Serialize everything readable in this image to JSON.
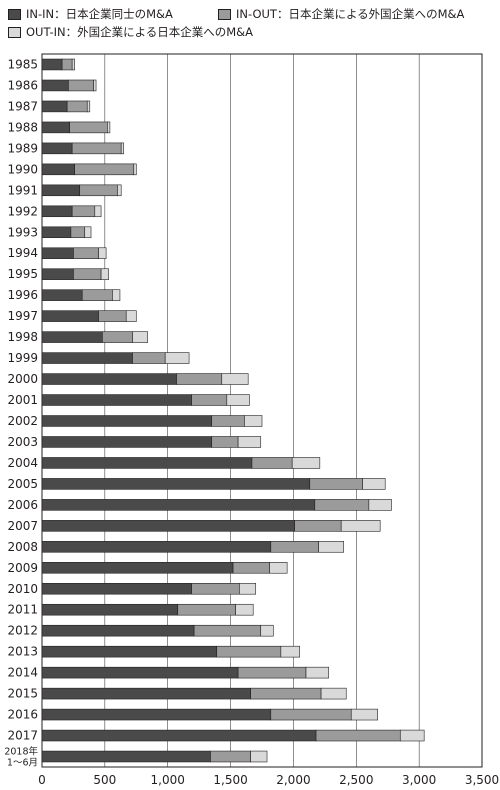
{
  "chart_data": {
    "type": "bar",
    "orientation": "horizontal",
    "stacked": true,
    "categories": [
      "1985",
      "1986",
      "1987",
      "1988",
      "1989",
      "1990",
      "1991",
      "1992",
      "1993",
      "1994",
      "1995",
      "1996",
      "1997",
      "1998",
      "1999",
      "2000",
      "2001",
      "2002",
      "2003",
      "2004",
      "2005",
      "2006",
      "2007",
      "2008",
      "2009",
      "2010",
      "2011",
      "2012",
      "2013",
      "2014",
      "2015",
      "2016",
      "2017",
      "2018年 1～6月"
    ],
    "series": [
      {
        "name": "IN-IN：日本企業同士のM&A",
        "color": "#4a4a4a",
        "values": [
          160,
          210,
          200,
          220,
          240,
          260,
          300,
          240,
          230,
          250,
          250,
          320,
          450,
          480,
          720,
          1070,
          1190,
          1350,
          1350,
          1670,
          2130,
          2170,
          2010,
          1820,
          1520,
          1190,
          1080,
          1210,
          1390,
          1560,
          1660,
          1820,
          2180,
          1340
        ]
      },
      {
        "name": "IN-OUT：日本企業による外国企業へのM&A",
        "color": "#9b9b9b",
        "values": [
          80,
          200,
          160,
          300,
          390,
          470,
          300,
          180,
          110,
          200,
          220,
          240,
          220,
          240,
          260,
          360,
          280,
          260,
          210,
          320,
          420,
          430,
          370,
          380,
          290,
          380,
          460,
          530,
          510,
          540,
          560,
          640,
          670,
          320
        ]
      },
      {
        "name": "OUT-IN：外国企業による日本企業へのM&A",
        "color": "#d9d9d9",
        "values": [
          20,
          20,
          20,
          20,
          20,
          20,
          30,
          50,
          50,
          60,
          60,
          60,
          80,
          120,
          190,
          210,
          180,
          140,
          180,
          220,
          180,
          180,
          310,
          200,
          140,
          130,
          140,
          100,
          150,
          180,
          200,
          210,
          190,
          130
        ]
      }
    ],
    "xlim": [
      0,
      3500
    ],
    "xticks": [
      0,
      500,
      1000,
      1500,
      2000,
      2500,
      3000,
      3500
    ],
    "xtick_labels": [
      "0",
      "500",
      "1,000",
      "1,500",
      "2,000",
      "2,500",
      "3,000",
      "3,500"
    ],
    "legend_position": "top",
    "grid": "vertical"
  }
}
